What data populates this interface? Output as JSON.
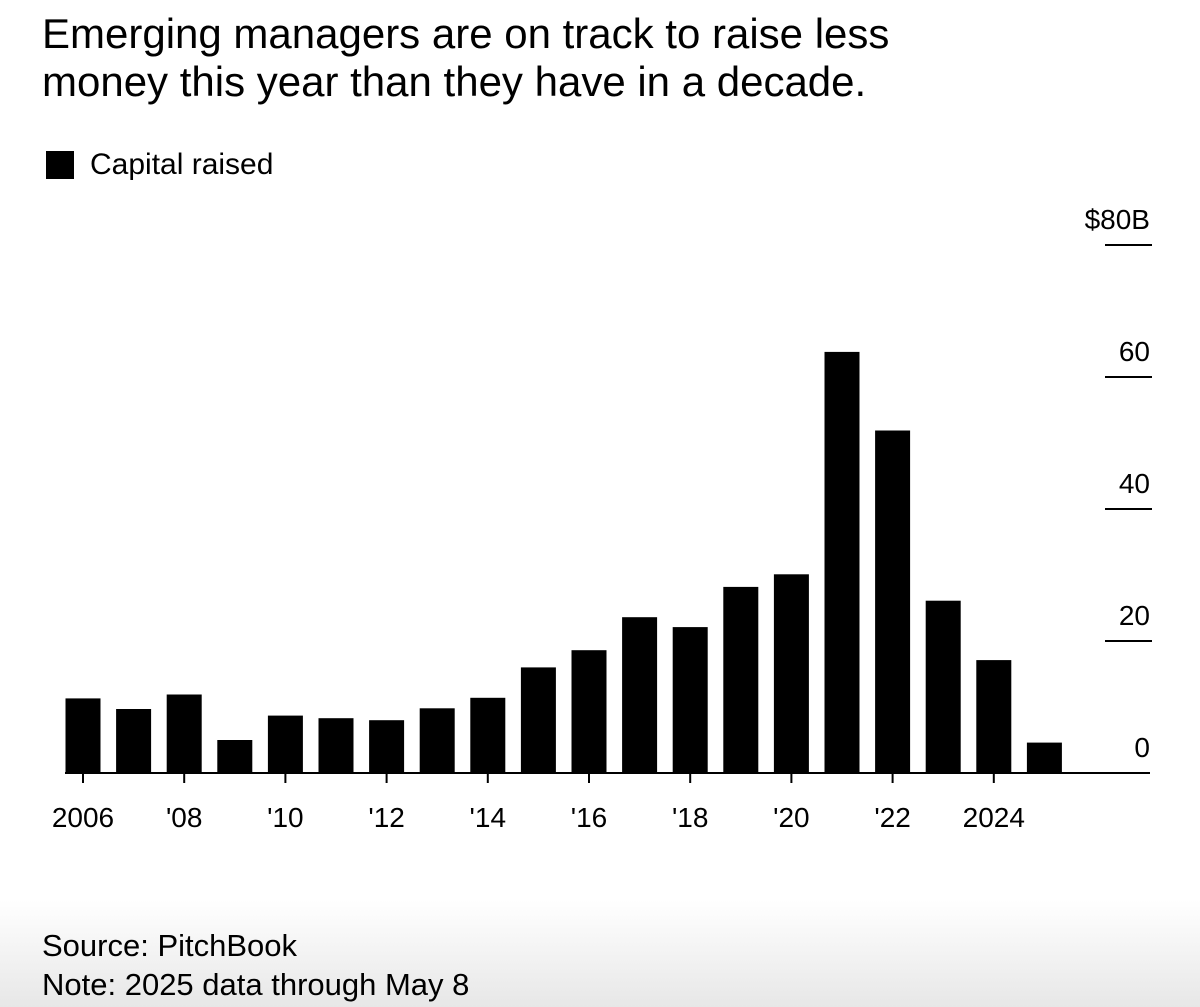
{
  "title_lines": [
    "Emerging managers are on track to raise less",
    "money this year than they have in a decade."
  ],
  "legend": {
    "label": "Capital raised"
  },
  "source": "Source: PitchBook",
  "note": "Note: 2025 data through May 8",
  "colors": {
    "bar": "#000000",
    "background": "#ffffff"
  },
  "chart_data": {
    "type": "bar",
    "title": "Emerging managers are on track to raise less money this year than they have in a decade.",
    "series": [
      {
        "name": "Capital raised",
        "values": [
          11.3,
          9.7,
          11.9,
          5.0,
          8.7,
          8.3,
          8.0,
          9.8,
          11.4,
          16.0,
          18.6,
          23.6,
          22.1,
          28.2,
          30.1,
          63.8,
          51.9,
          26.1,
          17.1,
          4.6
        ]
      }
    ],
    "categories": [
      "2006",
      "2007",
      "2008",
      "2009",
      "2010",
      "2011",
      "2012",
      "2013",
      "2014",
      "2015",
      "2016",
      "2017",
      "2018",
      "2019",
      "2020",
      "2021",
      "2022",
      "2023",
      "2024",
      "2025"
    ],
    "x_tick_labels": [
      "2006",
      "'08",
      "'10",
      "'12",
      "'14",
      "'16",
      "'18",
      "'20",
      "'22",
      "2024"
    ],
    "x_tick_years": [
      "2006",
      "2008",
      "2010",
      "2012",
      "2014",
      "2016",
      "2018",
      "2020",
      "2022",
      "2024"
    ],
    "y_tick_labels": [
      "$80B",
      "60",
      "40",
      "20",
      "0"
    ],
    "y_tick_values": [
      80,
      60,
      40,
      20,
      0
    ],
    "ylim": [
      0,
      80
    ],
    "xlabel": "",
    "ylabel": "",
    "legend_position": "top-left",
    "grid": false
  }
}
